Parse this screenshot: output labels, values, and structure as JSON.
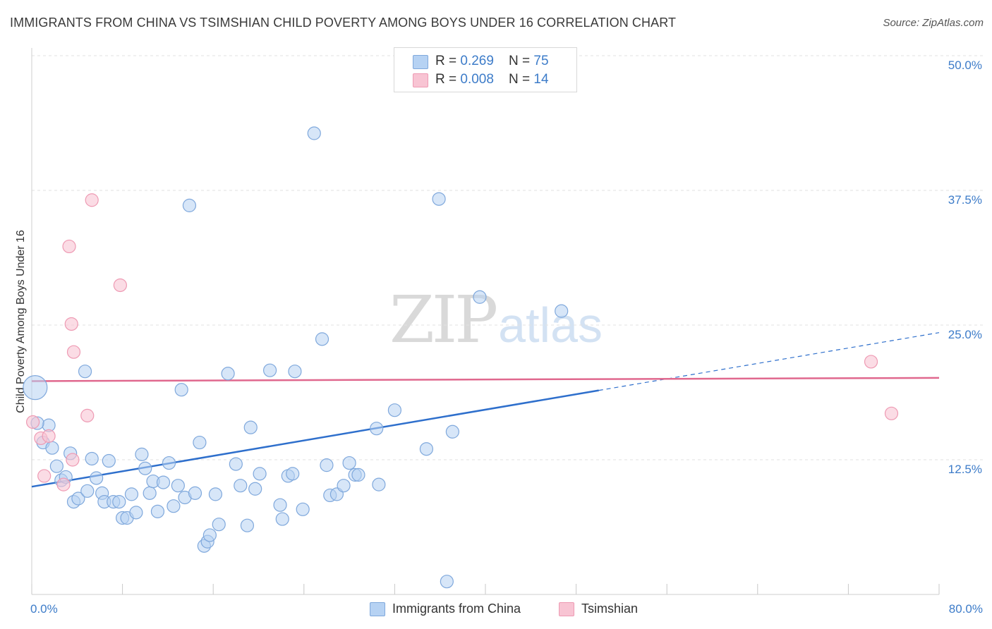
{
  "title": "IMMIGRANTS FROM CHINA VS TSIMSHIAN CHILD POVERTY AMONG BOYS UNDER 16 CORRELATION CHART",
  "source": "Source: ZipAtlas.com",
  "watermark": {
    "zip": "ZIP",
    "atlas": "atlas"
  },
  "legend": {
    "china": {
      "r_label": "R = ",
      "r_value": "0.269",
      "n_label": "N = ",
      "n_value": "75"
    },
    "tsimshian": {
      "r_label": "R = ",
      "r_value": "0.008",
      "n_label": "N = ",
      "n_value": "14"
    }
  },
  "colors": {
    "china_fill": "#b6d2f3",
    "china_stroke": "#7fa8dc",
    "china_line": "#2e6fcc",
    "tsimshian_fill": "#f8c4d3",
    "tsimshian_stroke": "#ee9ab3",
    "tsimshian_line": "#e0688e",
    "tick_label": "#3d7cc9",
    "grid": "#e2e2e2"
  },
  "chart_data": {
    "type": "scatter",
    "title": "IMMIGRANTS FROM CHINA VS TSIMSHIAN CHILD POVERTY AMONG BOYS UNDER 16 CORRELATION CHART",
    "xlabel": "",
    "ylabel": "Child Poverty Among Boys Under 16",
    "xlim": [
      0,
      80
    ],
    "ylim": [
      0,
      50
    ],
    "x_tick_labels": [
      "0.0%",
      "80.0%"
    ],
    "y_ticks": [
      {
        "value": 12.5,
        "label": "12.5%"
      },
      {
        "value": 25.0,
        "label": "25.0%"
      },
      {
        "value": 37.5,
        "label": "37.5%"
      },
      {
        "value": 50.0,
        "label": "50.0%"
      }
    ],
    "series": [
      {
        "name": "Immigrants from China",
        "color": "#b6d2f3",
        "trend": {
          "x_start": 0,
          "y_start": 10.0,
          "x_solid_end": 50,
          "x_end": 80,
          "y_end": 24.3
        },
        "points": [
          {
            "x": 0.3,
            "y": 19.2,
            "big": true
          },
          {
            "x": 1.5,
            "y": 15.7
          },
          {
            "x": 1.0,
            "y": 14.1
          },
          {
            "x": 1.8,
            "y": 13.6
          },
          {
            "x": 2.2,
            "y": 11.9
          },
          {
            "x": 2.6,
            "y": 10.6
          },
          {
            "x": 3.0,
            "y": 10.9
          },
          {
            "x": 3.4,
            "y": 13.1
          },
          {
            "x": 3.7,
            "y": 8.6
          },
          {
            "x": 4.1,
            "y": 8.9
          },
          {
            "x": 4.7,
            "y": 20.7
          },
          {
            "x": 4.9,
            "y": 9.6
          },
          {
            "x": 5.3,
            "y": 12.6
          },
          {
            "x": 5.7,
            "y": 10.8
          },
          {
            "x": 6.2,
            "y": 9.4
          },
          {
            "x": 6.4,
            "y": 8.6
          },
          {
            "x": 6.8,
            "y": 12.4
          },
          {
            "x": 7.2,
            "y": 8.6
          },
          {
            "x": 7.7,
            "y": 8.6
          },
          {
            "x": 8.0,
            "y": 7.1
          },
          {
            "x": 8.4,
            "y": 7.1
          },
          {
            "x": 8.8,
            "y": 9.3
          },
          {
            "x": 9.2,
            "y": 7.6
          },
          {
            "x": 9.7,
            "y": 13.0
          },
          {
            "x": 10.0,
            "y": 11.7
          },
          {
            "x": 10.4,
            "y": 9.4
          },
          {
            "x": 10.7,
            "y": 10.5
          },
          {
            "x": 11.1,
            "y": 7.7
          },
          {
            "x": 11.6,
            "y": 10.4
          },
          {
            "x": 12.1,
            "y": 12.2
          },
          {
            "x": 12.5,
            "y": 8.2
          },
          {
            "x": 12.9,
            "y": 10.1
          },
          {
            "x": 13.2,
            "y": 19.0
          },
          {
            "x": 13.5,
            "y": 9.0
          },
          {
            "x": 13.9,
            "y": 36.1
          },
          {
            "x": 14.4,
            "y": 9.4
          },
          {
            "x": 14.8,
            "y": 14.1
          },
          {
            "x": 15.2,
            "y": 4.5
          },
          {
            "x": 15.5,
            "y": 4.9
          },
          {
            "x": 15.7,
            "y": 5.5
          },
          {
            "x": 16.2,
            "y": 9.3
          },
          {
            "x": 16.5,
            "y": 6.5
          },
          {
            "x": 17.3,
            "y": 20.5
          },
          {
            "x": 18.0,
            "y": 12.1
          },
          {
            "x": 18.4,
            "y": 10.1
          },
          {
            "x": 19.0,
            "y": 6.4
          },
          {
            "x": 19.3,
            "y": 15.5
          },
          {
            "x": 19.7,
            "y": 9.8
          },
          {
            "x": 20.1,
            "y": 11.2
          },
          {
            "x": 21.0,
            "y": 20.8
          },
          {
            "x": 21.9,
            "y": 8.3
          },
          {
            "x": 22.1,
            "y": 7.0
          },
          {
            "x": 22.6,
            "y": 11.0
          },
          {
            "x": 23.0,
            "y": 11.2
          },
          {
            "x": 23.2,
            "y": 20.7
          },
          {
            "x": 23.9,
            "y": 7.9
          },
          {
            "x": 24.9,
            "y": 42.8
          },
          {
            "x": 25.6,
            "y": 23.7
          },
          {
            "x": 26.0,
            "y": 12.0
          },
          {
            "x": 26.3,
            "y": 9.2
          },
          {
            "x": 26.9,
            "y": 9.3
          },
          {
            "x": 27.5,
            "y": 10.1
          },
          {
            "x": 28.0,
            "y": 12.2
          },
          {
            "x": 28.5,
            "y": 11.1
          },
          {
            "x": 28.8,
            "y": 11.1
          },
          {
            "x": 30.6,
            "y": 10.2
          },
          {
            "x": 30.4,
            "y": 15.4
          },
          {
            "x": 32.0,
            "y": 17.1
          },
          {
            "x": 34.8,
            "y": 13.5
          },
          {
            "x": 35.9,
            "y": 36.7
          },
          {
            "x": 36.6,
            "y": 1.2
          },
          {
            "x": 37.1,
            "y": 15.1
          },
          {
            "x": 39.5,
            "y": 27.6
          },
          {
            "x": 46.7,
            "y": 26.3
          },
          {
            "x": 0.5,
            "y": 15.9
          }
        ]
      },
      {
        "name": "Tsimshian",
        "color": "#f8c4d3",
        "trend": {
          "x_start": 0,
          "y_start": 19.8,
          "x_end": 80,
          "y_end": 20.1
        },
        "points": [
          {
            "x": 0.1,
            "y": 16.0
          },
          {
            "x": 0.8,
            "y": 14.5
          },
          {
            "x": 1.5,
            "y": 14.7
          },
          {
            "x": 1.1,
            "y": 11.0
          },
          {
            "x": 2.8,
            "y": 10.2
          },
          {
            "x": 3.3,
            "y": 32.3
          },
          {
            "x": 3.5,
            "y": 25.1
          },
          {
            "x": 3.7,
            "y": 22.5
          },
          {
            "x": 3.6,
            "y": 12.5
          },
          {
            "x": 4.9,
            "y": 16.6
          },
          {
            "x": 5.3,
            "y": 36.6
          },
          {
            "x": 7.8,
            "y": 28.7
          },
          {
            "x": 74.0,
            "y": 21.6
          },
          {
            "x": 75.8,
            "y": 16.8
          }
        ]
      }
    ]
  },
  "legend_bottom": {
    "china": "Immigrants from China",
    "tsimshian": "Tsimshian"
  }
}
